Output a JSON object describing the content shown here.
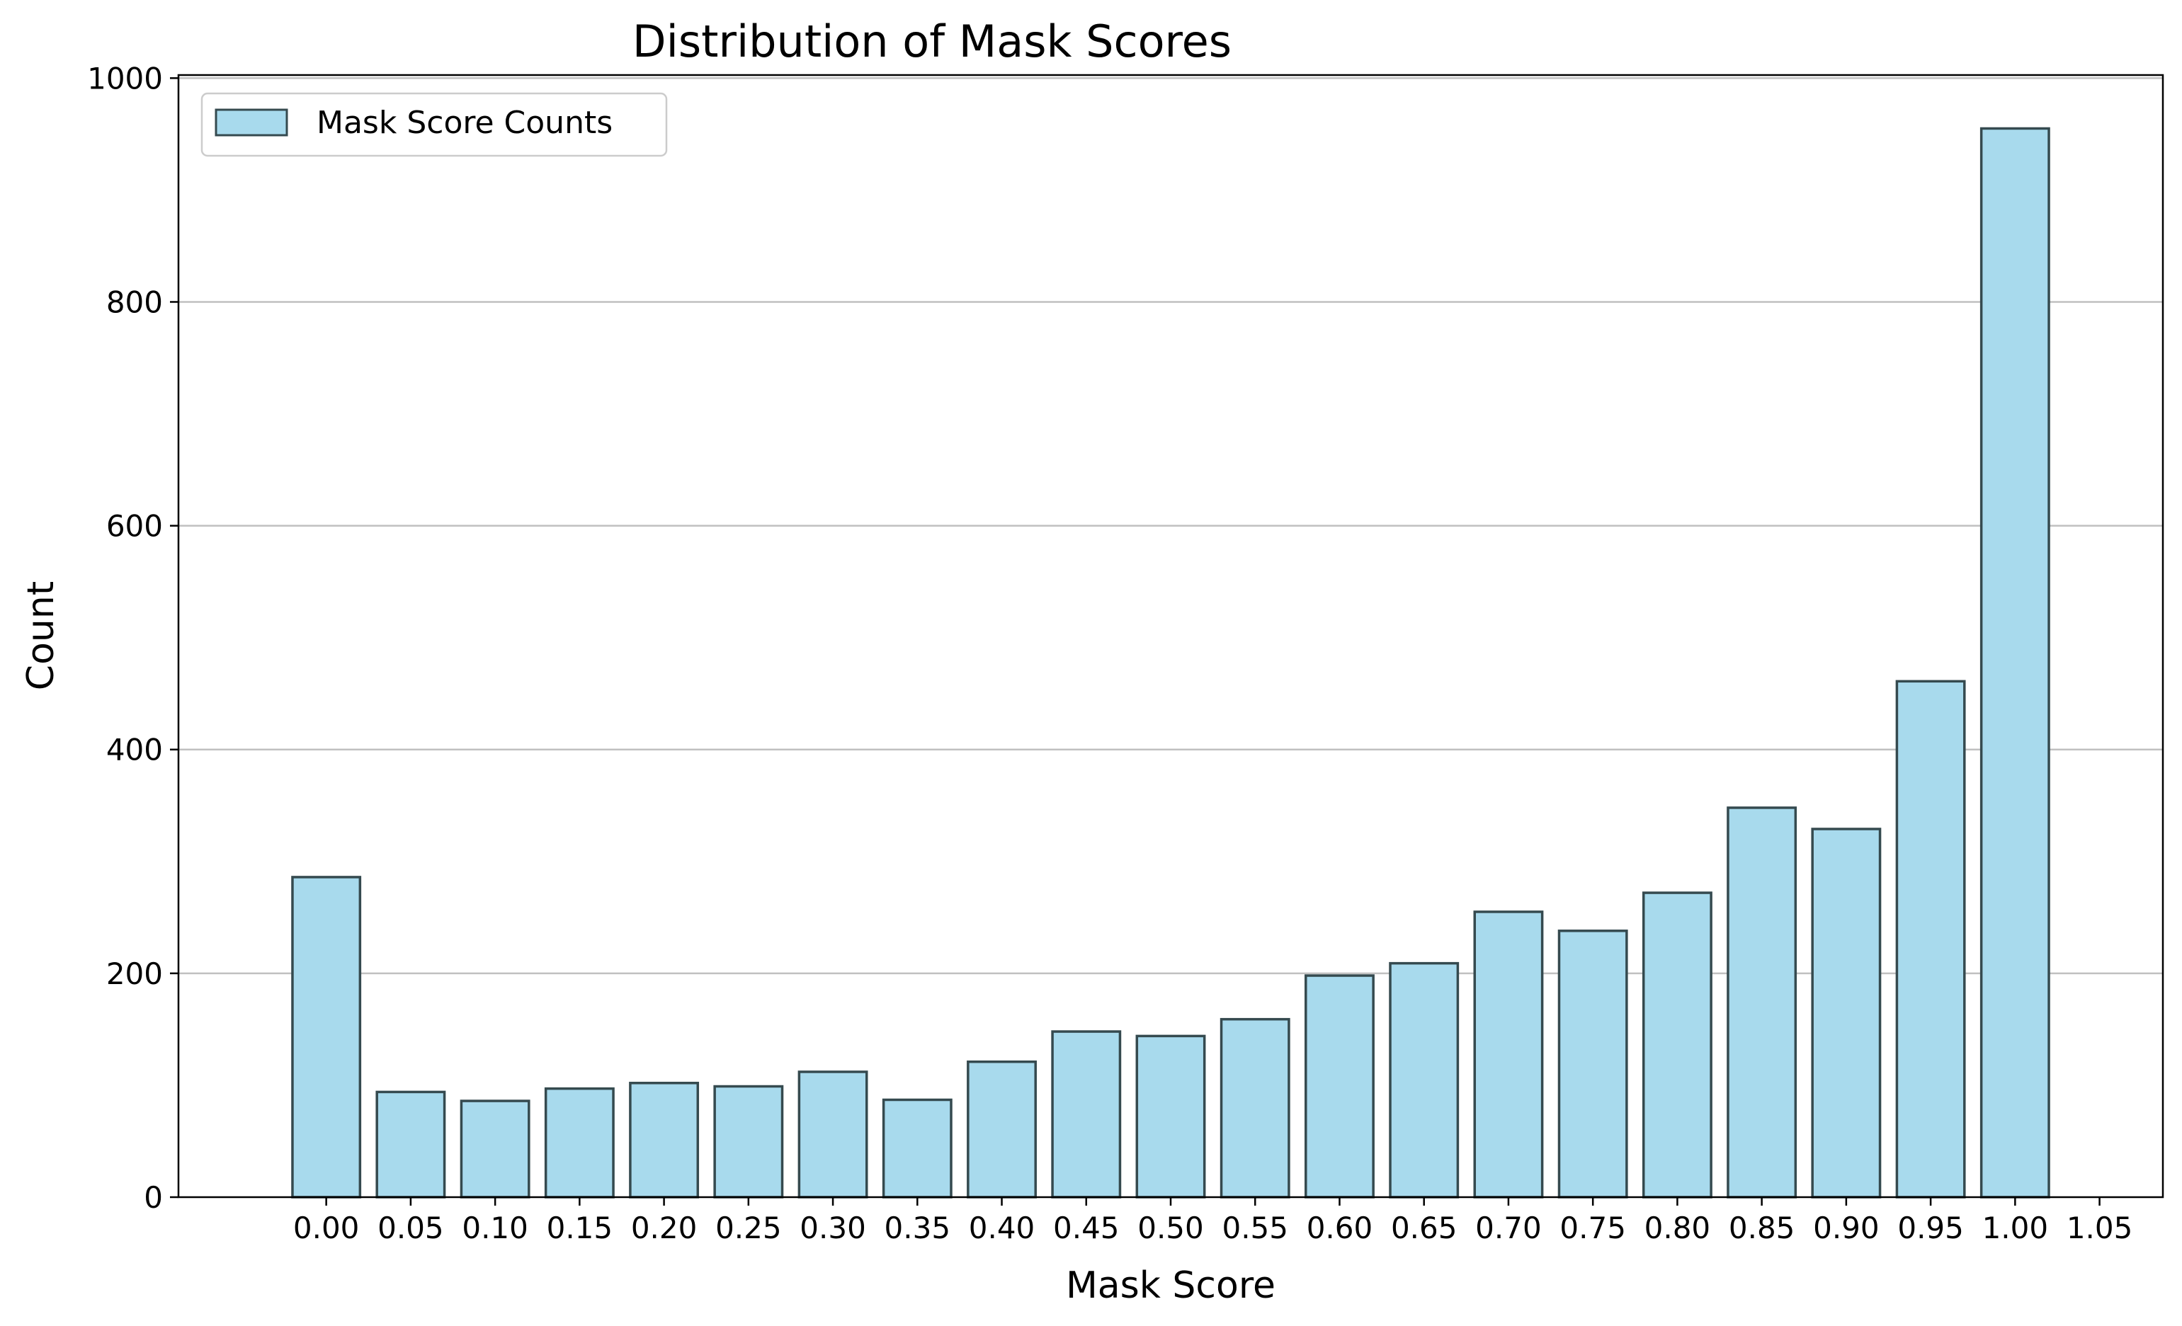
{
  "chart_data": {
    "type": "bar",
    "title": "Distribution of Mask Scores",
    "xlabel": "Mask Score",
    "ylabel": "Count",
    "x": [
      0.0,
      0.05,
      0.1,
      0.15,
      0.2,
      0.25,
      0.3,
      0.35,
      0.4,
      0.45,
      0.5,
      0.55,
      0.6,
      0.65,
      0.7,
      0.75,
      0.8,
      0.85,
      0.9,
      0.95,
      1.0
    ],
    "values": [
      286,
      94,
      86,
      97,
      102,
      99,
      112,
      87,
      121,
      148,
      144,
      159,
      198,
      209,
      255,
      238,
      272,
      348,
      329,
      461,
      955
    ],
    "xticks": [
      "0.00",
      "0.05",
      "0.10",
      "0.15",
      "0.20",
      "0.25",
      "0.30",
      "0.35",
      "0.40",
      "0.45",
      "0.50",
      "0.55",
      "0.60",
      "0.65",
      "0.70",
      "0.75",
      "0.80",
      "0.85",
      "0.90",
      "0.95",
      "1.00",
      "1.05"
    ],
    "yticks": [
      0,
      200,
      400,
      600,
      800,
      1000
    ],
    "xlim": [
      -0.0875,
      1.0875
    ],
    "ylim": [
      0,
      1002.75
    ],
    "bar_width": 0.04,
    "grid": "y",
    "legend": {
      "label": "Mask Score Counts",
      "position": "upper-left"
    },
    "bar_color": "#a8daed",
    "bar_edge_color": "#354a4f",
    "grid_color": "#c0c0c0"
  }
}
